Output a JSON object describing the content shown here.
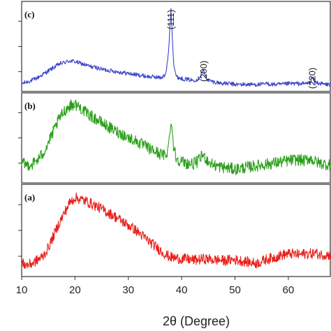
{
  "chart_data": {
    "type": "line",
    "xlabel": "2θ (Degree)",
    "ylabel": "",
    "xlim": [
      10,
      68
    ],
    "x_ticks": [
      10,
      20,
      30,
      40,
      50,
      60
    ],
    "y_ticks_visible": true,
    "y_tick_labels_visible": false,
    "panels": [
      {
        "label": "(c)",
        "color": "#3a44c8",
        "ylim": [
          0,
          100
        ],
        "series": [
          {
            "x": [
              10,
              11,
              12,
              13,
              14,
              15,
              16,
              17,
              18,
              19,
              20,
              21,
              22,
              23,
              24,
              25,
              26,
              27,
              28,
              29,
              30,
              31,
              32,
              33,
              34,
              35,
              36,
              37,
              37.5,
              38,
              38.5,
              39,
              40,
              41,
              42,
              43,
              43.5,
              44,
              44.5,
              45,
              46,
              47,
              48,
              49,
              50,
              51,
              52,
              53,
              54,
              55,
              56,
              57,
              58,
              59,
              60,
              61,
              62,
              63,
              64,
              64.5,
              65,
              66,
              67,
              68
            ],
            "y": [
              6,
              8,
              10,
              13,
              17,
              21,
              25,
              29,
              31,
              33,
              32,
              30,
              28,
              26,
              25,
              23,
              22,
              21,
              20,
              19,
              18,
              17,
              16,
              15,
              14,
              14,
              13,
              16,
              40,
              94,
              30,
              14,
              12,
              11,
              10,
              11,
              15,
              22,
              14,
              10,
              8,
              7,
              6,
              6,
              5,
              5,
              5,
              5,
              5,
              5,
              6,
              5,
              5,
              5,
              6,
              6,
              6,
              6,
              7,
              13,
              8,
              6,
              5,
              5
            ]
          }
        ],
        "annotations": [
          {
            "text": "(111)",
            "x": 38
          },
          {
            "text": "(200)",
            "x": 44.2
          },
          {
            "text": "(220)",
            "x": 64.5
          }
        ]
      },
      {
        "label": "(b)",
        "color": "#2a9e1a",
        "ylim": [
          0,
          100
        ],
        "series": [
          {
            "x": [
              10,
              11,
              12,
              13,
              14,
              15,
              16,
              17,
              18,
              19,
              20,
              21,
              22,
              23,
              24,
              25,
              26,
              27,
              28,
              29,
              30,
              31,
              32,
              33,
              34,
              35,
              36,
              37,
              37.5,
              38,
              38.5,
              39,
              40,
              41,
              42,
              43,
              44,
              45,
              46,
              47,
              48,
              49,
              50,
              51,
              52,
              53,
              54,
              55,
              56,
              57,
              58,
              59,
              60,
              61,
              62,
              63,
              64,
              65,
              66,
              67,
              68
            ],
            "y": [
              20,
              18,
              19,
              24,
              32,
              44,
              58,
              72,
              82,
              88,
              90,
              86,
              80,
              76,
              72,
              68,
              64,
              60,
              57,
              54,
              50,
              48,
              44,
              41,
              37,
              34,
              31,
              29,
              38,
              72,
              40,
              26,
              22,
              20,
              19,
              22,
              30,
              22,
              18,
              16,
              15,
              14,
              13,
              14,
              15,
              16,
              17,
              18,
              19,
              20,
              21,
              22,
              23,
              24,
              24,
              23,
              26,
              22,
              20,
              19,
              18
            ]
          }
        ],
        "annotations": []
      },
      {
        "label": "(a)",
        "color": "#e8201a",
        "ylim": [
          0,
          100
        ],
        "series": [
          {
            "x": [
              10,
              11,
              12,
              13,
              14,
              15,
              16,
              17,
              18,
              19,
              20,
              21,
              22,
              23,
              24,
              25,
              26,
              27,
              28,
              29,
              30,
              31,
              32,
              33,
              34,
              35,
              36,
              37,
              38,
              39,
              40,
              41,
              42,
              43,
              44,
              45,
              46,
              47,
              48,
              49,
              50,
              51,
              52,
              53,
              54,
              55,
              56,
              57,
              58,
              59,
              60,
              61,
              62,
              63,
              64,
              65,
              66,
              67,
              68
            ],
            "y": [
              12,
              10,
              12,
              16,
              20,
              30,
              44,
              58,
              70,
              82,
              88,
              86,
              84,
              81,
              78,
              75,
              71,
              68,
              64,
              60,
              56,
              52,
              47,
              42,
              37,
              32,
              27,
              22,
              19,
              18,
              17,
              17,
              16,
              16,
              17,
              17,
              16,
              16,
              15,
              16,
              16,
              15,
              14,
              13,
              12,
              14,
              17,
              18,
              20,
              22,
              23,
              23,
              22,
              23,
              23,
              24,
              22,
              22,
              21
            ]
          }
        ],
        "annotations": []
      }
    ]
  }
}
